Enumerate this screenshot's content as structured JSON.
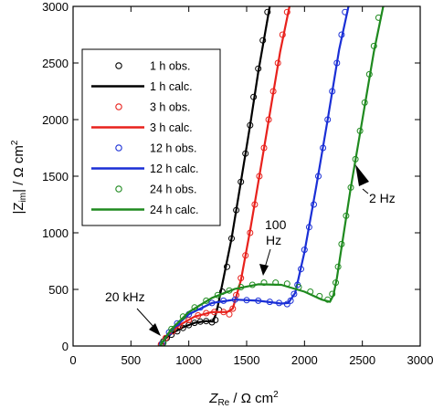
{
  "chart_data": {
    "type": "scatter",
    "xlabel_main": "Z",
    "xlabel_sub": "Re",
    "xlabel_rest": " / Ω cm",
    "xlabel_sup": "2",
    "ylabel_pre": "|Z",
    "ylabel_sub": "im",
    "ylabel_rest": "| / Ω cm",
    "ylabel_sup": "2",
    "xlim": [
      0,
      3000
    ],
    "ylim": [
      0,
      3000
    ],
    "xticks": [
      0,
      500,
      1000,
      1500,
      2000,
      2500,
      3000
    ],
    "yticks": [
      0,
      500,
      1000,
      1500,
      2000,
      2500,
      3000
    ],
    "grid": false,
    "legend_position": "left",
    "legend": [
      {
        "label": "1 h obs.",
        "kind": "marker",
        "color": "#000000"
      },
      {
        "label": "1 h calc.",
        "kind": "line",
        "color": "#000000"
      },
      {
        "label": "3 h obs.",
        "kind": "marker",
        "color": "#e8211c"
      },
      {
        "label": "3 h calc.",
        "kind": "line",
        "color": "#e8211c"
      },
      {
        "label": "12 h obs.",
        "kind": "marker",
        "color": "#1a2fd6"
      },
      {
        "label": "12 h calc.",
        "kind": "line",
        "color": "#1a2fd6"
      },
      {
        "label": "24 h obs.",
        "kind": "marker",
        "color": "#1f8a1f"
      },
      {
        "label": "24 h calc.",
        "kind": "line",
        "color": "#1f8a1f"
      }
    ],
    "series": [
      {
        "name": "1 h",
        "color": "#000000",
        "obs": [
          [
            760,
            10
          ],
          [
            780,
            40
          ],
          [
            810,
            70
          ],
          [
            850,
            100
          ],
          [
            900,
            130
          ],
          [
            950,
            160
          ],
          [
            1000,
            185
          ],
          [
            1050,
            205
          ],
          [
            1100,
            215
          ],
          [
            1150,
            220
          ],
          [
            1200,
            210
          ],
          [
            1230,
            230
          ],
          [
            1260,
            320
          ],
          [
            1290,
            480
          ],
          [
            1330,
            700
          ],
          [
            1370,
            950
          ],
          [
            1410,
            1200
          ],
          [
            1450,
            1450
          ],
          [
            1490,
            1700
          ],
          [
            1530,
            1950
          ],
          [
            1560,
            2200
          ],
          [
            1600,
            2450
          ],
          [
            1640,
            2700
          ],
          [
            1680,
            2950
          ]
        ],
        "calc": [
          [
            750,
            0
          ],
          [
            790,
            60
          ],
          [
            850,
            110
          ],
          [
            950,
            165
          ],
          [
            1050,
            205
          ],
          [
            1150,
            220
          ],
          [
            1210,
            215
          ],
          [
            1240,
            300
          ],
          [
            1300,
            600
          ],
          [
            1370,
            950
          ],
          [
            1450,
            1450
          ],
          [
            1530,
            1950
          ],
          [
            1600,
            2420
          ],
          [
            1700,
            3000
          ]
        ]
      },
      {
        "name": "3 h",
        "color": "#e8211c",
        "obs": [
          [
            760,
            15
          ],
          [
            800,
            70
          ],
          [
            860,
            130
          ],
          [
            920,
            180
          ],
          [
            1000,
            230
          ],
          [
            1080,
            270
          ],
          [
            1150,
            290
          ],
          [
            1220,
            300
          ],
          [
            1300,
            300
          ],
          [
            1350,
            280
          ],
          [
            1380,
            330
          ],
          [
            1410,
            450
          ],
          [
            1450,
            600
          ],
          [
            1490,
            800
          ],
          [
            1530,
            1000
          ],
          [
            1570,
            1250
          ],
          [
            1610,
            1500
          ],
          [
            1650,
            1750
          ],
          [
            1690,
            2000
          ],
          [
            1730,
            2250
          ],
          [
            1770,
            2500
          ],
          [
            1810,
            2750
          ],
          [
            1850,
            2950
          ]
        ],
        "calc": [
          [
            750,
            0
          ],
          [
            810,
            90
          ],
          [
            920,
            185
          ],
          [
            1050,
            260
          ],
          [
            1200,
            300
          ],
          [
            1330,
            300
          ],
          [
            1380,
            330
          ],
          [
            1450,
            580
          ],
          [
            1530,
            1020
          ],
          [
            1610,
            1500
          ],
          [
            1700,
            2050
          ],
          [
            1790,
            2600
          ],
          [
            1870,
            3000
          ]
        ]
      },
      {
        "name": "12 h",
        "color": "#1a2fd6",
        "obs": [
          [
            770,
            20
          ],
          [
            830,
            120
          ],
          [
            900,
            200
          ],
          [
            1000,
            280
          ],
          [
            1100,
            340
          ],
          [
            1200,
            380
          ],
          [
            1300,
            400
          ],
          [
            1400,
            410
          ],
          [
            1500,
            405
          ],
          [
            1600,
            400
          ],
          [
            1700,
            390
          ],
          [
            1780,
            380
          ],
          [
            1850,
            370
          ],
          [
            1880,
            400
          ],
          [
            1910,
            460
          ],
          [
            1940,
            540
          ],
          [
            1970,
            680
          ],
          [
            2000,
            850
          ],
          [
            2040,
            1050
          ],
          [
            2080,
            1250
          ],
          [
            2120,
            1500
          ],
          [
            2160,
            1750
          ],
          [
            2200,
            2000
          ],
          [
            2240,
            2250
          ],
          [
            2280,
            2500
          ],
          [
            2320,
            2750
          ],
          [
            2350,
            2950
          ]
        ],
        "calc": [
          [
            750,
            0
          ],
          [
            830,
            120
          ],
          [
            1000,
            280
          ],
          [
            1200,
            380
          ],
          [
            1400,
            410
          ],
          [
            1600,
            400
          ],
          [
            1800,
            375
          ],
          [
            1860,
            380
          ],
          [
            1920,
            470
          ],
          [
            2000,
            830
          ],
          [
            2100,
            1400
          ],
          [
            2200,
            2000
          ],
          [
            2300,
            2620
          ],
          [
            2380,
            3000
          ]
        ]
      },
      {
        "name": "24 h",
        "color": "#1f8a1f",
        "obs": [
          [
            780,
            25
          ],
          [
            850,
            150
          ],
          [
            950,
            260
          ],
          [
            1050,
            340
          ],
          [
            1150,
            400
          ],
          [
            1250,
            450
          ],
          [
            1350,
            490
          ],
          [
            1450,
            520
          ],
          [
            1550,
            540
          ],
          [
            1650,
            560
          ],
          [
            1750,
            560
          ],
          [
            1850,
            550
          ],
          [
            1950,
            520
          ],
          [
            2050,
            480
          ],
          [
            2130,
            440
          ],
          [
            2200,
            410
          ],
          [
            2240,
            460
          ],
          [
            2270,
            560
          ],
          [
            2290,
            700
          ],
          [
            2320,
            900
          ],
          [
            2360,
            1150
          ],
          [
            2400,
            1400
          ],
          [
            2440,
            1650
          ],
          [
            2480,
            1900
          ],
          [
            2520,
            2150
          ],
          [
            2560,
            2400
          ],
          [
            2600,
            2650
          ],
          [
            2640,
            2900
          ]
        ],
        "calc": [
          [
            750,
            0
          ],
          [
            850,
            150
          ],
          [
            1000,
            300
          ],
          [
            1200,
            425
          ],
          [
            1400,
            505
          ],
          [
            1600,
            545
          ],
          [
            1800,
            540
          ],
          [
            2000,
            480
          ],
          [
            2150,
            410
          ],
          [
            2220,
            390
          ],
          [
            2250,
            450
          ],
          [
            2280,
            600
          ],
          [
            2320,
            870
          ],
          [
            2400,
            1400
          ],
          [
            2500,
            2000
          ],
          [
            2600,
            2600
          ],
          [
            2680,
            3000
          ]
        ]
      }
    ],
    "annotations": [
      {
        "text": "20 kHz",
        "x": 850,
        "y": 120
      },
      {
        "text": "100",
        "text2": "Hz",
        "x": 1650,
        "y": 560
      },
      {
        "text": "2 Hz",
        "x": 2500,
        "y": 1600
      }
    ]
  }
}
